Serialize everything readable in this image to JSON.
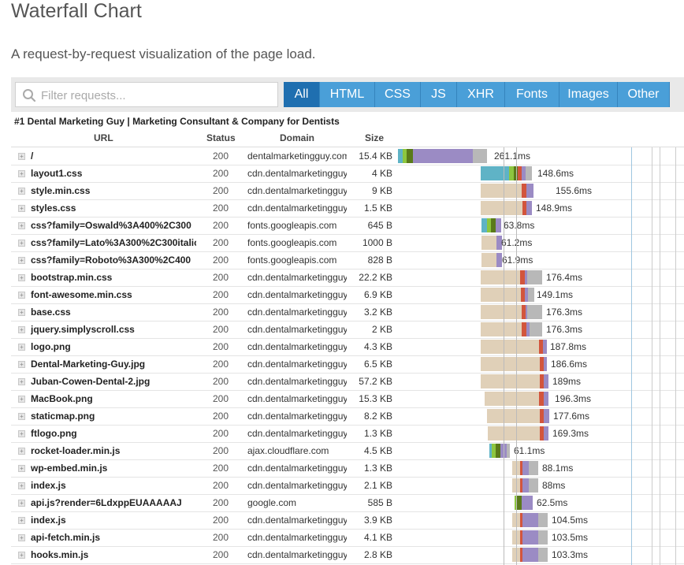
{
  "header": {
    "title": "Waterfall Chart",
    "subtitle": "A request-by-request visualization of the page load."
  },
  "filter": {
    "placeholder": "Filter requests..."
  },
  "tabs": [
    {
      "label": "All",
      "active": true
    },
    {
      "label": "HTML"
    },
    {
      "label": "CSS"
    },
    {
      "label": "JS"
    },
    {
      "label": "XHR"
    },
    {
      "label": "Fonts"
    },
    {
      "label": "Images"
    },
    {
      "label": "Other"
    }
  ],
  "page_name": "#1 Dental Marketing Guy | Marketing Consultant & Company for Dentists",
  "columns": {
    "url": "URL",
    "status": "Status",
    "domain": "Domain",
    "size": "Size"
  },
  "colors": {
    "blocking": "#e0d0b8",
    "dns": "#5fb3c6",
    "connect": "#8dc63f",
    "ssl": "#5a7a1a",
    "send": "#d2553d",
    "wait": "#9b8bc4",
    "receive": "#b8b8b8",
    "accent": "#1f6fb0"
  },
  "requests": [
    {
      "url": "/",
      "status": "200",
      "domain": "dentalmarketingguy.com",
      "size": "15.4 KB",
      "duration": "261.1ms"
    },
    {
      "url": "layout1.css",
      "status": "200",
      "domain": "cdn.dentalmarketingguy.com",
      "size": "4 KB",
      "duration": "148.6ms"
    },
    {
      "url": "style.min.css",
      "status": "200",
      "domain": "cdn.dentalmarketingguy.com",
      "size": "9 KB",
      "duration": "155.6ms"
    },
    {
      "url": "styles.css",
      "status": "200",
      "domain": "cdn.dentalmarketingguy.com",
      "size": "1.5 KB",
      "duration": "148.9ms"
    },
    {
      "url": "css?family=Oswald%3A400%2C300",
      "status": "200",
      "domain": "fonts.googleapis.com",
      "size": "645 B",
      "duration": "63.8ms"
    },
    {
      "url": "css?family=Lato%3A300%2C300italic",
      "status": "200",
      "domain": "fonts.googleapis.com",
      "size": "1000 B",
      "duration": "61.2ms"
    },
    {
      "url": "css?family=Roboto%3A300%2C400",
      "status": "200",
      "domain": "fonts.googleapis.com",
      "size": "828 B",
      "duration": "61.9ms"
    },
    {
      "url": "bootstrap.min.css",
      "status": "200",
      "domain": "cdn.dentalmarketingguy.com",
      "size": "22.2 KB",
      "duration": "176.4ms"
    },
    {
      "url": "font-awesome.min.css",
      "status": "200",
      "domain": "cdn.dentalmarketingguy.com",
      "size": "6.9 KB",
      "duration": "149.1ms"
    },
    {
      "url": "base.css",
      "status": "200",
      "domain": "cdn.dentalmarketingguy.com",
      "size": "3.2 KB",
      "duration": "176.3ms"
    },
    {
      "url": "jquery.simplyscroll.css",
      "status": "200",
      "domain": "cdn.dentalmarketingguy.com",
      "size": "2 KB",
      "duration": "176.3ms"
    },
    {
      "url": "logo.png",
      "status": "200",
      "domain": "cdn.dentalmarketingguy.com",
      "size": "4.3 KB",
      "duration": "187.8ms"
    },
    {
      "url": "Dental-Marketing-Guy.jpg",
      "status": "200",
      "domain": "cdn.dentalmarketingguy.com",
      "size": "6.5 KB",
      "duration": "186.6ms"
    },
    {
      "url": "Juban-Cowen-Dental-2.jpg",
      "status": "200",
      "domain": "cdn.dentalmarketingguy.com",
      "size": "57.2 KB",
      "duration": "189ms"
    },
    {
      "url": "MacBook.png",
      "status": "200",
      "domain": "cdn.dentalmarketingguy.com",
      "size": "15.3 KB",
      "duration": "196.3ms"
    },
    {
      "url": "staticmap.png",
      "status": "200",
      "domain": "cdn.dentalmarketingguy.com",
      "size": "8.2 KB",
      "duration": "177.6ms"
    },
    {
      "url": "ftlogo.png",
      "status": "200",
      "domain": "cdn.dentalmarketingguy.com",
      "size": "1.3 KB",
      "duration": "169.3ms"
    },
    {
      "url": "rocket-loader.min.js",
      "status": "200",
      "domain": "ajax.cloudflare.com",
      "size": "4.5 KB",
      "duration": "61.1ms"
    },
    {
      "url": "wp-embed.min.js",
      "status": "200",
      "domain": "cdn.dentalmarketingguy.com",
      "size": "1.3 KB",
      "duration": "88.1ms"
    },
    {
      "url": "index.js",
      "status": "200",
      "domain": "cdn.dentalmarketingguy.com",
      "size": "2.1 KB",
      "duration": "88ms"
    },
    {
      "url": "api.js?render=6LdxppEUAAAAAJ",
      "status": "200",
      "domain": "google.com",
      "size": "585 B",
      "duration": "62.5ms"
    },
    {
      "url": "index.js",
      "status": "200",
      "domain": "cdn.dentalmarketingguy.com",
      "size": "3.9 KB",
      "duration": "104.5ms"
    },
    {
      "url": "api-fetch.min.js",
      "status": "200",
      "domain": "cdn.dentalmarketingguy.com",
      "size": "4.1 KB",
      "duration": "103.5ms"
    },
    {
      "url": "hooks.min.js",
      "status": "200",
      "domain": "cdn.dentalmarketingguy.com",
      "size": "2.8 KB",
      "duration": "103.3ms"
    }
  ]
}
